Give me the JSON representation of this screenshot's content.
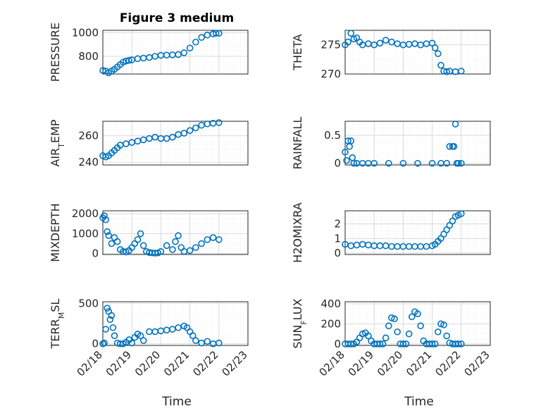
{
  "figure": {
    "title": "Figure 3 medium",
    "xlabel": "Time",
    "x_ticks": [
      "02/18",
      "02/19",
      "02/20",
      "02/21",
      "02/22",
      "02/23"
    ],
    "marker_color": "#0072BD"
  },
  "chart_data": [
    {
      "type": "scatter",
      "id": "pressure",
      "ylabel": "PRESSURE",
      "xlim": [
        "02/18",
        "02/23"
      ],
      "ylim": [
        650,
        1020
      ],
      "yticks": [
        800,
        1000
      ],
      "grid": true,
      "x_days": [
        0,
        0.1,
        0.2,
        0.3,
        0.4,
        0.5,
        0.6,
        0.7,
        0.8,
        0.9,
        1.0,
        1.2,
        1.4,
        1.6,
        1.8,
        2.0,
        2.2,
        2.4,
        2.6,
        2.8,
        3.0,
        3.2,
        3.4,
        3.6,
        3.8,
        3.9,
        4.0
      ],
      "values": [
        680,
        675,
        660,
        675,
        690,
        710,
        730,
        750,
        760,
        765,
        770,
        780,
        785,
        790,
        800,
        808,
        810,
        812,
        815,
        830,
        870,
        920,
        960,
        980,
        990,
        995,
        995
      ]
    },
    {
      "type": "scatter",
      "id": "theta",
      "ylabel": "THETA",
      "xlim": [
        "02/18",
        "02/23"
      ],
      "ylim": [
        270,
        277.5
      ],
      "yticks": [
        270,
        275
      ],
      "grid": true,
      "x_days": [
        0,
        0.1,
        0.2,
        0.3,
        0.4,
        0.5,
        0.6,
        0.8,
        1.0,
        1.2,
        1.4,
        1.6,
        1.8,
        2.0,
        2.2,
        2.4,
        2.6,
        2.8,
        3.0,
        3.1,
        3.2,
        3.3,
        3.4,
        3.5,
        3.6,
        3.8,
        4.0
      ],
      "values": [
        275,
        275.5,
        277,
        276,
        276.2,
        275.5,
        275,
        275.2,
        275,
        275.3,
        275.8,
        275.5,
        275.2,
        275,
        275.1,
        275.2,
        275,
        275.2,
        275.3,
        274.5,
        273.5,
        271.5,
        270.5,
        270.4,
        270.5,
        270.4,
        270.5
      ]
    },
    {
      "type": "scatter",
      "id": "air_temp",
      "ylabel": "AIR",
      "ylabel_sub": "T",
      "ylabel_tail": "EMP",
      "xlim": [
        "02/18",
        "02/23"
      ],
      "ylim": [
        238,
        271
      ],
      "yticks": [
        240,
        260
      ],
      "grid": true,
      "x_days": [
        0,
        0.1,
        0.2,
        0.3,
        0.4,
        0.5,
        0.6,
        0.8,
        1.0,
        1.2,
        1.4,
        1.6,
        1.8,
        2.0,
        2.2,
        2.4,
        2.6,
        2.8,
        3.0,
        3.2,
        3.4,
        3.6,
        3.8,
        4.0
      ],
      "values": [
        245,
        244,
        245,
        247,
        249,
        251,
        253,
        254,
        255,
        256,
        257,
        258,
        259,
        258,
        258,
        259,
        261,
        262,
        264,
        266,
        268,
        269,
        269.5,
        270
      ]
    },
    {
      "type": "scatter",
      "id": "rainfall",
      "ylabel": "RAINFALL",
      "xlim": [
        "02/18",
        "02/23"
      ],
      "ylim": [
        -0.03,
        0.75
      ],
      "yticks": [
        0,
        0.5
      ],
      "grid": true,
      "x_days": [
        0,
        0.05,
        0.1,
        0.15,
        0.2,
        0.25,
        0.3,
        0.4,
        0.6,
        0.8,
        1.0,
        1.5,
        2.0,
        2.5,
        3.0,
        3.3,
        3.5,
        3.6,
        3.7,
        3.75,
        3.8,
        3.85,
        3.9,
        4.0
      ],
      "values": [
        0.2,
        0.05,
        0.4,
        0.3,
        0.4,
        0.1,
        0,
        0,
        0,
        0,
        0,
        0,
        0,
        0,
        0,
        0,
        0,
        0.3,
        0.3,
        0.3,
        0.7,
        0,
        0,
        0
      ]
    },
    {
      "type": "scatter",
      "id": "mixdepth",
      "ylabel": "MIXDEPTH",
      "xlim": [
        "02/18",
        "02/23"
      ],
      "ylim": [
        -50,
        2150
      ],
      "yticks": [
        0,
        1000,
        2000
      ],
      "grid": true,
      "x_days": [
        0,
        0.05,
        0.1,
        0.15,
        0.2,
        0.3,
        0.4,
        0.5,
        0.6,
        0.7,
        0.8,
        0.9,
        1.0,
        1.1,
        1.2,
        1.3,
        1.4,
        1.5,
        1.6,
        1.7,
        1.8,
        1.9,
        2.0,
        2.2,
        2.4,
        2.5,
        2.6,
        2.7,
        2.8,
        3.0,
        3.2,
        3.4,
        3.6,
        3.8,
        4.0
      ],
      "values": [
        1800,
        1900,
        1700,
        1100,
        900,
        500,
        800,
        600,
        200,
        100,
        80,
        150,
        300,
        500,
        700,
        1000,
        400,
        100,
        50,
        30,
        20,
        30,
        100,
        400,
        200,
        600,
        900,
        300,
        100,
        150,
        300,
        500,
        700,
        800,
        700
      ]
    },
    {
      "type": "scatter",
      "id": "h2omixra",
      "ylabel": "H2OMIXRA",
      "xlim": [
        "02/18",
        "02/23"
      ],
      "ylim": [
        -0.1,
        2.9
      ],
      "yticks": [
        0,
        1,
        2
      ],
      "grid": true,
      "x_days": [
        0,
        0.2,
        0.4,
        0.6,
        0.8,
        1.0,
        1.2,
        1.4,
        1.6,
        1.8,
        2.0,
        2.2,
        2.4,
        2.6,
        2.8,
        3.0,
        3.1,
        3.2,
        3.3,
        3.4,
        3.5,
        3.6,
        3.7,
        3.8,
        3.9,
        4.0
      ],
      "values": [
        0.6,
        0.5,
        0.55,
        0.6,
        0.55,
        0.5,
        0.5,
        0.5,
        0.45,
        0.45,
        0.45,
        0.45,
        0.45,
        0.45,
        0.45,
        0.5,
        0.6,
        0.8,
        1.0,
        1.3,
        1.6,
        1.9,
        2.2,
        2.5,
        2.6,
        2.7
      ]
    },
    {
      "type": "scatter",
      "id": "terr_msl",
      "ylabel": "TERR",
      "ylabel_sub": "M",
      "ylabel_tail": "SL",
      "xlim": [
        "02/18",
        "02/23"
      ],
      "ylim": [
        -20,
        520
      ],
      "yticks": [
        0,
        500
      ],
      "grid": true,
      "x_days": [
        0,
        0.05,
        0.1,
        0.15,
        0.2,
        0.25,
        0.3,
        0.35,
        0.4,
        0.5,
        0.6,
        0.7,
        0.8,
        0.9,
        1.0,
        1.1,
        1.2,
        1.3,
        1.4,
        1.6,
        1.8,
        2.0,
        2.2,
        2.4,
        2.6,
        2.8,
        2.9,
        3.0,
        3.1,
        3.2,
        3.4,
        3.6,
        3.8,
        4.0
      ],
      "values": [
        0,
        10,
        180,
        440,
        400,
        300,
        350,
        200,
        100,
        10,
        0,
        0,
        20,
        50,
        10,
        80,
        120,
        100,
        40,
        150,
        150,
        160,
        170,
        180,
        200,
        220,
        200,
        150,
        100,
        40,
        10,
        30,
        0,
        10
      ]
    },
    {
      "type": "scatter",
      "id": "sun_flux",
      "ylabel": "SUN",
      "ylabel_sub": "F",
      "ylabel_tail": "LUX",
      "xlim": [
        "02/18",
        "02/23"
      ],
      "ylim": [
        -15,
        420
      ],
      "yticks": [
        0,
        200,
        400
      ],
      "grid": true,
      "x_days": [
        0,
        0.1,
        0.2,
        0.3,
        0.4,
        0.5,
        0.6,
        0.7,
        0.8,
        0.9,
        1.0,
        1.1,
        1.2,
        1.3,
        1.4,
        1.5,
        1.6,
        1.7,
        1.8,
        1.9,
        2.0,
        2.1,
        2.2,
        2.3,
        2.4,
        2.5,
        2.6,
        2.7,
        2.8,
        2.9,
        3.0,
        3.1,
        3.2,
        3.3,
        3.4,
        3.5,
        3.6,
        3.7,
        3.8,
        3.9,
        4.0
      ],
      "values": [
        0,
        0,
        0,
        0,
        20,
        60,
        100,
        110,
        80,
        30,
        0,
        0,
        0,
        0,
        60,
        180,
        260,
        250,
        120,
        0,
        0,
        0,
        100,
        270,
        320,
        300,
        180,
        30,
        0,
        0,
        0,
        0,
        120,
        200,
        190,
        80,
        10,
        0,
        0,
        0,
        0
      ]
    }
  ]
}
